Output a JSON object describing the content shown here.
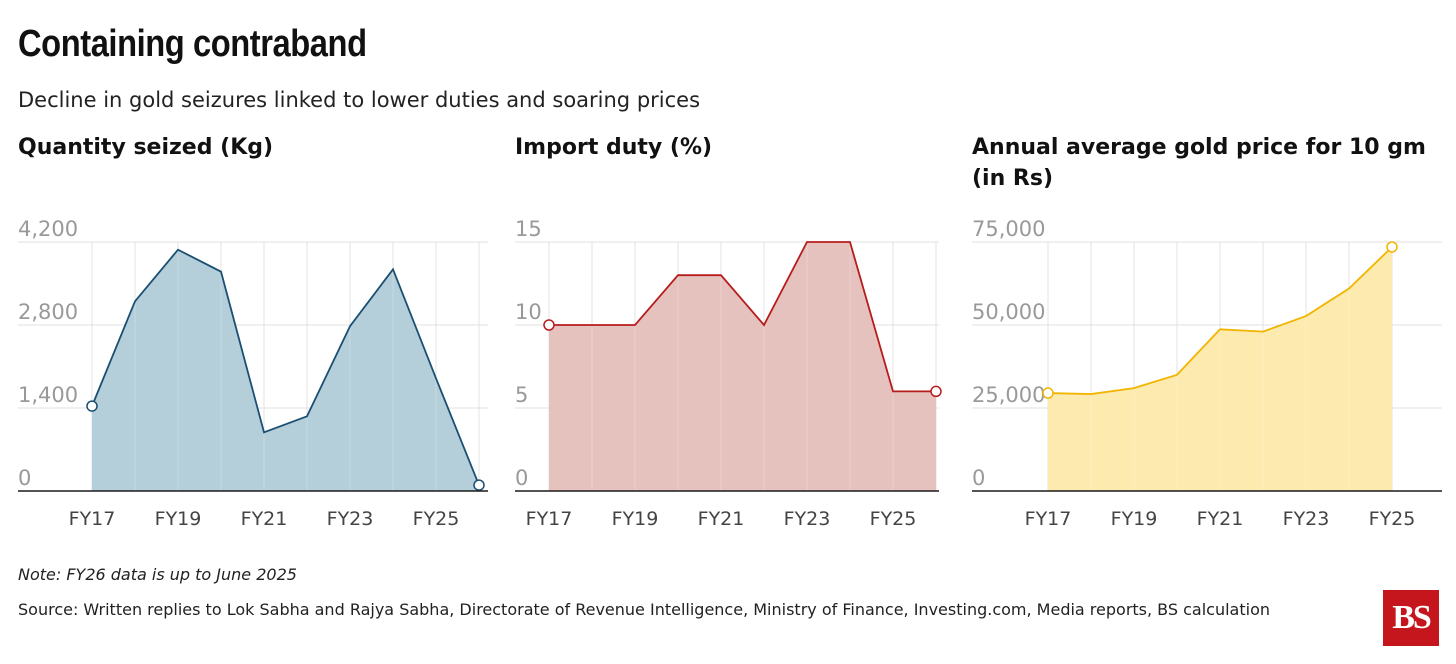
{
  "header": {
    "title": "Containing contraband",
    "subtitle": "Decline in gold seizures linked to lower duties and soaring prices"
  },
  "footer": {
    "note": "Note: FY26 data is up to June 2025",
    "source": "Source: Written replies to Lok Sabha and Rajya Sabha, Directorate of Revenue Intelligence, Ministry of Finance, Investing.com, Media reports, BS calculation",
    "logo_text": "BS"
  },
  "chart_data": [
    {
      "type": "area",
      "title": "Quantity seized (Kg)",
      "x": [
        "FY17",
        "FY18",
        "FY19",
        "FY20",
        "FY21",
        "FY22",
        "FY23",
        "FY24",
        "FY25",
        "FY26"
      ],
      "values": [
        1432,
        3200,
        4070,
        3700,
        990,
        1260,
        2780,
        3740,
        1900,
        100
      ],
      "ylim": [
        0,
        4200
      ],
      "yticks": [
        0,
        1400,
        2800,
        4200
      ],
      "ytick_labels": [
        "0",
        "1,400",
        "2,800",
        "4,200"
      ],
      "xtick_labels": [
        "FY17",
        "FY19",
        "FY21",
        "FY23",
        "FY25"
      ],
      "color": "#1b4f72",
      "fill": "#b0cbd8",
      "endpoint_markers": true
    },
    {
      "type": "area",
      "title": "Import duty (%)",
      "x": [
        "FY17",
        "FY18",
        "FY19",
        "FY20",
        "FY21",
        "FY22",
        "FY23",
        "FY24",
        "FY25",
        "FY26"
      ],
      "values": [
        10,
        10,
        10,
        13,
        13,
        10,
        15,
        15,
        6,
        6
      ],
      "ylim": [
        0,
        15
      ],
      "yticks": [
        0,
        5,
        10,
        15
      ],
      "ytick_labels": [
        "0",
        "5",
        "10",
        "15"
      ],
      "xtick_labels": [
        "FY17",
        "FY19",
        "FY21",
        "FY23",
        "FY25"
      ],
      "color": "#b71c1c",
      "fill": "#e5bfba",
      "endpoint_markers": true
    },
    {
      "type": "area",
      "title": "Annual average gold price for 10 gm (in Rs)",
      "x": [
        "FY17",
        "FY18",
        "FY19",
        "FY20",
        "FY21",
        "FY22",
        "FY23",
        "FY24",
        "FY25"
      ],
      "values": [
        29500,
        29200,
        31000,
        35000,
        48700,
        48000,
        52700,
        61000,
        73500
      ],
      "ylim": [
        0,
        75000
      ],
      "yticks": [
        0,
        25000,
        50000,
        75000
      ],
      "ytick_labels": [
        "0",
        "25,000",
        "50,000",
        "75,000"
      ],
      "xtick_labels": [
        "FY17",
        "FY19",
        "FY21",
        "FY23",
        "FY25"
      ],
      "color": "#f1b500",
      "fill": "#fde9ab",
      "endpoint_markers": true
    }
  ]
}
